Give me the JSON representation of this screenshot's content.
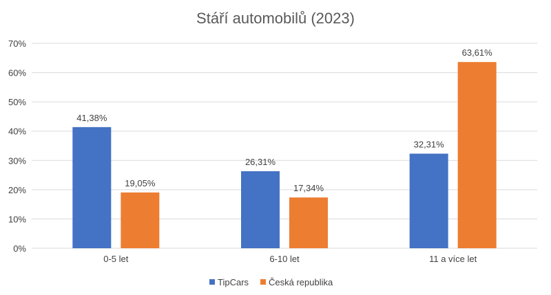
{
  "chart_data": {
    "type": "bar",
    "title": "Stáří automobilů (2023)",
    "categories": [
      "0-5 let",
      "6-10 let",
      "11 a více let"
    ],
    "series": [
      {
        "name": "TipCars",
        "values": [
          41.38,
          26.31,
          32.31
        ],
        "labels": [
          "41,38%",
          "26,31%",
          "32,31%"
        ],
        "color": "#4472C4"
      },
      {
        "name": "Česká republika",
        "values": [
          19.05,
          17.34,
          63.61
        ],
        "labels": [
          "19,05%",
          "17,34%",
          "63,61%"
        ],
        "color": "#ED7D31"
      }
    ],
    "ylim": [
      0,
      70
    ],
    "yticks": [
      0,
      10,
      20,
      30,
      40,
      50,
      60,
      70
    ],
    "ytick_labels": [
      "0%",
      "10%",
      "20%",
      "30%",
      "40%",
      "50%",
      "60%",
      "70%"
    ],
    "grid": true,
    "legend_position": "bottom",
    "gridline_color": "#D9D9D9",
    "text_color": "#404040"
  }
}
